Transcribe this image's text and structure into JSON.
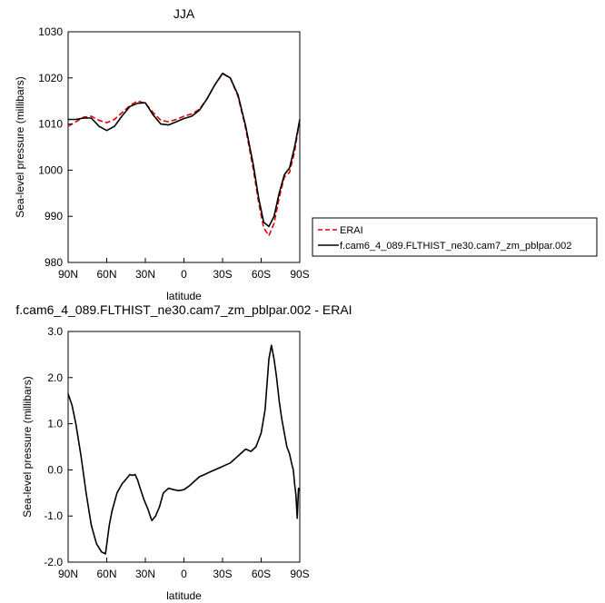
{
  "chart_data": [
    {
      "type": "line",
      "title": "JJA",
      "xlabel": "latitude",
      "ylabel": "Sea-level pressure (millibars)",
      "xlim": [
        90,
        -90
      ],
      "ylim": [
        980,
        1030
      ],
      "xticks": [
        90,
        60,
        30,
        0,
        -30,
        -60,
        -90
      ],
      "xtick_labels": [
        "90N",
        "60N",
        "30N",
        "0",
        "30S",
        "60S",
        "90S"
      ],
      "yticks": [
        980,
        990,
        1000,
        1010,
        1020,
        1030
      ],
      "ytick_labels": [
        "980",
        "990",
        "1000",
        "1010",
        "1020",
        "1030"
      ],
      "grid": false,
      "legend_position": "outside-right",
      "series": [
        {
          "name": "ERAI",
          "color": "#dd0000",
          "dash": "dashed",
          "x": [
            90,
            84,
            78,
            72,
            66,
            60,
            54,
            48,
            42,
            36,
            30,
            24,
            18,
            12,
            6,
            0,
            -6,
            -12,
            -18,
            -24,
            -30,
            -36,
            -42,
            -48,
            -54,
            -58,
            -62,
            -66,
            -70,
            -74,
            -78,
            -82,
            -86,
            -90
          ],
          "y": [
            1009.5,
            1010.5,
            1011.5,
            1011.7,
            1010.8,
            1010.3,
            1011.0,
            1012.5,
            1014.0,
            1015.0,
            1014.5,
            1012.5,
            1010.8,
            1010.5,
            1011.0,
            1011.7,
            1012.2,
            1013.2,
            1015.5,
            1018.5,
            1020.9,
            1020.0,
            1016.0,
            1009.0,
            1000.0,
            993.0,
            987.5,
            985.8,
            988.5,
            994.0,
            998.5,
            999.5,
            1004.0,
            1011.0
          ]
        },
        {
          "name": "f.cam6_4_089.FLTHIST_ne30.cam7_zm_pblpar.002",
          "color": "#000000",
          "dash": "solid",
          "x": [
            90,
            84,
            78,
            72,
            66,
            60,
            54,
            48,
            42,
            36,
            30,
            24,
            18,
            12,
            6,
            0,
            -6,
            -12,
            -18,
            -24,
            -30,
            -36,
            -42,
            -48,
            -54,
            -58,
            -62,
            -66,
            -70,
            -74,
            -78,
            -82,
            -86,
            -90
          ],
          "y": [
            1011.0,
            1011.0,
            1011.3,
            1011.3,
            1009.5,
            1008.6,
            1009.5,
            1011.8,
            1013.8,
            1014.5,
            1014.6,
            1012.0,
            1010.0,
            1009.8,
            1010.5,
            1011.2,
            1011.7,
            1013.0,
            1015.5,
            1018.5,
            1021.0,
            1020.0,
            1016.3,
            1009.5,
            1001.0,
            994.0,
            988.7,
            987.8,
            990.0,
            995.0,
            999.0,
            1000.5,
            1005.0,
            1011.0
          ]
        }
      ]
    },
    {
      "type": "line",
      "title": "f.cam6_4_089.FLTHIST_ne30.cam7_zm_pblpar.002 - ERAI",
      "xlabel": "latitude",
      "ylabel": "Sea-level pressure (millibars)",
      "xlim": [
        90,
        -90
      ],
      "ylim": [
        -2.0,
        3.0
      ],
      "xticks": [
        90,
        60,
        30,
        0,
        -30,
        -60,
        -90
      ],
      "xtick_labels": [
        "90N",
        "60N",
        "30N",
        "0",
        "30S",
        "60S",
        "90S"
      ],
      "yticks": [
        -2.0,
        -1.0,
        0.0,
        1.0,
        2.0,
        3.0
      ],
      "ytick_labels": [
        "-2.0",
        "-1.0",
        "0.0",
        "1.0",
        "2.0",
        "3.0"
      ],
      "grid": false,
      "series": [
        {
          "color": "#000000",
          "dash": "solid",
          "x": [
            90,
            87,
            84,
            80,
            76,
            72,
            68,
            64,
            61,
            58,
            56,
            52,
            48,
            45,
            42,
            40,
            38,
            36,
            34,
            31,
            28,
            25,
            22,
            19,
            16,
            12,
            8,
            4,
            0,
            -4,
            -8,
            -12,
            -16,
            -20,
            -24,
            -28,
            -32,
            -36,
            -40,
            -44,
            -48,
            -52,
            -56,
            -60,
            -63,
            -66,
            -68,
            -70,
            -72,
            -74,
            -76,
            -78,
            -80,
            -82,
            -84,
            -85,
            -86,
            -87,
            -88,
            -89,
            -90
          ],
          "y": [
            1.65,
            1.4,
            1.0,
            0.3,
            -0.5,
            -1.2,
            -1.6,
            -1.78,
            -1.82,
            -1.2,
            -0.9,
            -0.5,
            -0.3,
            -0.2,
            -0.1,
            -0.12,
            -0.1,
            -0.22,
            -0.4,
            -0.65,
            -0.85,
            -1.1,
            -1.0,
            -0.8,
            -0.5,
            -0.4,
            -0.43,
            -0.45,
            -0.43,
            -0.35,
            -0.25,
            -0.15,
            -0.1,
            -0.05,
            0.0,
            0.05,
            0.1,
            0.15,
            0.25,
            0.35,
            0.45,
            0.4,
            0.5,
            0.8,
            1.3,
            2.4,
            2.7,
            2.4,
            2.0,
            1.5,
            1.1,
            0.8,
            0.5,
            0.35,
            0.1,
            0.0,
            -0.3,
            -0.55,
            -1.05,
            -0.4,
            -0.45
          ]
        }
      ]
    }
  ]
}
